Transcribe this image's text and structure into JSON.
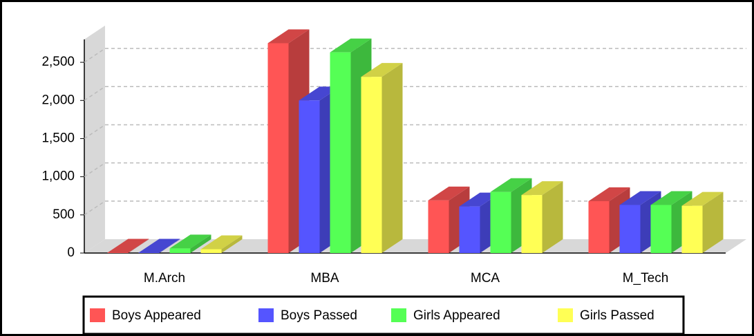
{
  "chart_data": {
    "type": "bar3d",
    "categories": [
      "M.Arch",
      "MBA",
      "MCA",
      "M_Tech"
    ],
    "series": [
      {
        "name": "Boys Appeared",
        "color": "#ff5555",
        "values": [
          5,
          2750,
          690,
          680
        ]
      },
      {
        "name": "Boys Passed",
        "color": "#5555ff",
        "values": [
          5,
          2000,
          610,
          630
        ]
      },
      {
        "name": "Girls Appeared",
        "color": "#55ff55",
        "values": [
          60,
          2630,
          800,
          630
        ]
      },
      {
        "name": "Girls Passed",
        "color": "#ffff55",
        "values": [
          50,
          2310,
          760,
          620
        ]
      }
    ],
    "ylim": [
      0,
      2800
    ],
    "yticks": [
      0,
      500,
      {
        "value": 1000,
        "label": "1,000"
      },
      {
        "value": 1500,
        "label": "1,500"
      },
      {
        "value": 2000,
        "label": "2,000"
      },
      {
        "value": 2500,
        "label": "2,500"
      }
    ],
    "grid": true,
    "legend": "bottom"
  }
}
